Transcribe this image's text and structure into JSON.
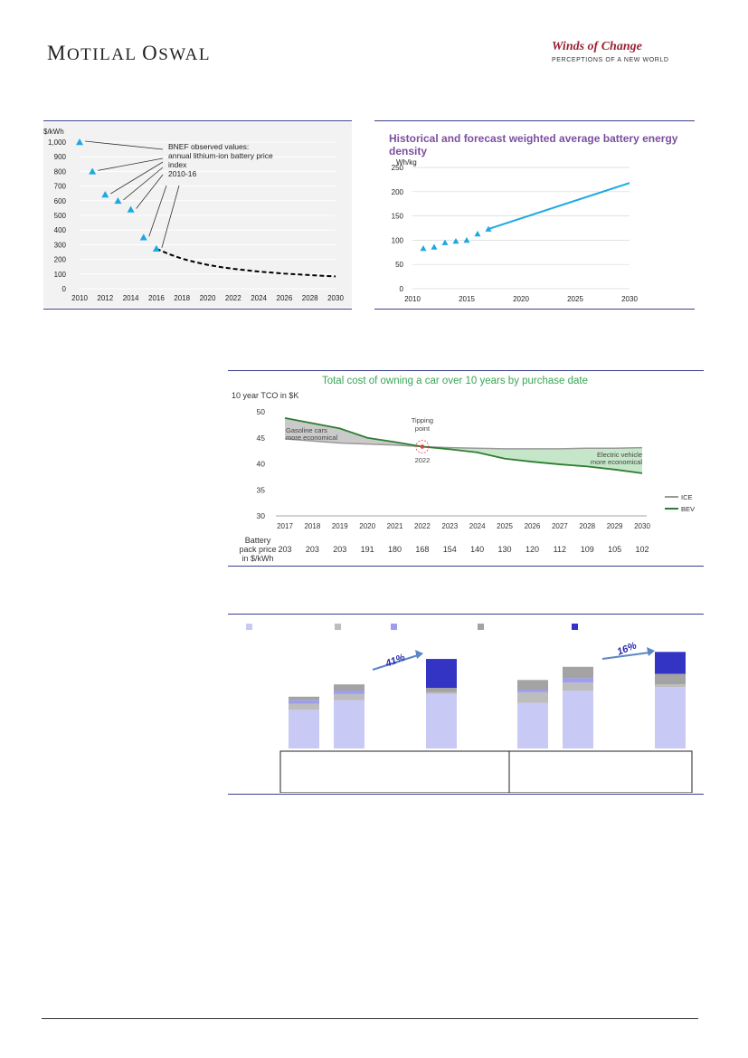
{
  "header": {
    "brand": "Motilal Oswal",
    "brand_display": [
      "M",
      "OTILAL ",
      "O",
      "SWAL"
    ],
    "logo_title": "Winds of Change",
    "logo_subtitle": "PERCEPTIONS OF A NEW WORLD"
  },
  "chart_data": [
    {
      "id": "battery-price",
      "type": "line",
      "ylabel": "$/kWh",
      "annotation": "BNEF observed values:\nannual lithium-ion battery price\nindex\n2010-16",
      "ylim": [
        0,
        1000
      ],
      "yticks": [
        "0",
        "100",
        "200",
        "300",
        "400",
        "500",
        "600",
        "700",
        "800",
        "900",
        "1,000"
      ],
      "xlim": [
        2010,
        2030
      ],
      "xticks": [
        "2010",
        "2012",
        "2014",
        "2016",
        "2018",
        "2020",
        "2022",
        "2024",
        "2026",
        "2028",
        "2030"
      ],
      "series": [
        {
          "kind": "observed",
          "marker": "triangle",
          "color": "#1ca9e0",
          "x": [
            2010,
            2011,
            2012,
            2013,
            2014,
            2015,
            2016
          ],
          "y": [
            1000,
            800,
            642,
            599,
            540,
            350,
            273
          ]
        },
        {
          "kind": "forecast",
          "style": "dashed",
          "color": "#000000",
          "x": [
            2016,
            2017,
            2018,
            2019,
            2020,
            2021,
            2022,
            2023,
            2024,
            2025,
            2026,
            2027,
            2028,
            2029,
            2030
          ],
          "y": [
            273,
            235,
            205,
            182,
            163,
            148,
            136,
            126,
            117,
            110,
            103,
            98,
            93,
            88,
            84
          ]
        }
      ]
    },
    {
      "id": "energy-density",
      "type": "line",
      "title": "Historical and forecast weighted average battery energy density",
      "ylabel": "Wh/kg",
      "ylim": [
        0,
        250
      ],
      "yticks": [
        "0",
        "50",
        "100",
        "150",
        "200",
        "250"
      ],
      "xlim": [
        2010,
        2030
      ],
      "xticks": [
        "2010",
        "2015",
        "2020",
        "2025",
        "2030"
      ],
      "series": [
        {
          "kind": "observed",
          "marker": "triangle",
          "color": "#1ca9e0",
          "x": [
            2011,
            2012,
            2013,
            2014,
            2015,
            2016,
            2017
          ],
          "y": [
            83,
            86,
            95,
            98,
            100,
            113,
            123
          ]
        },
        {
          "kind": "forecast",
          "style": "solid",
          "color": "#1ca9e0",
          "x": [
            2017,
            2030
          ],
          "y": [
            123,
            218
          ]
        }
      ]
    },
    {
      "id": "tco",
      "type": "area",
      "title": "Total cost of owning a car over 10 years by purchase date",
      "ylabel": "10 year TCO in $K",
      "ylim": [
        30,
        50
      ],
      "yticks": [
        "30",
        "35",
        "40",
        "45",
        "50"
      ],
      "categories": [
        "2017",
        "2018",
        "2019",
        "2020",
        "2021",
        "2022",
        "2023",
        "2024",
        "2025",
        "2026",
        "2027",
        "2028",
        "2029",
        "2030"
      ],
      "series": [
        {
          "name": "ICE",
          "color": "#999999",
          "values": [
            44.8,
            44.4,
            44.0,
            43.8,
            43.6,
            43.3,
            43.1,
            43.0,
            42.9,
            42.9,
            42.9,
            43.0,
            43.0,
            43.1
          ]
        },
        {
          "name": "BEV",
          "color": "#2e7d32",
          "values": [
            48.8,
            47.8,
            46.8,
            45.0,
            44.2,
            43.3,
            42.8,
            42.2,
            41.0,
            40.4,
            39.9,
            39.5,
            38.9,
            38.2
          ]
        }
      ],
      "annotations": {
        "gasoline": "Gasoline cars\nmore economical",
        "ev": "Electric vehicle\nmore economical",
        "tipping": "Tipping\npoint",
        "tipping_year": "2022"
      },
      "battery_row_label": "Battery\npack price\nin $/kWh",
      "battery_prices": [
        "203",
        "203",
        "203",
        "191",
        "180",
        "168",
        "154",
        "140",
        "130",
        "120",
        "112",
        "109",
        "105",
        "102"
      ]
    },
    {
      "id": "stacked-cost",
      "type": "bar",
      "stacked": true,
      "series_colors": [
        "#c9c9f5",
        "#bdbdbd",
        "#9e9ef0",
        "#a3a3a3",
        "#3434c4"
      ],
      "groups": [
        {
          "bars": [
            {
              "values": [
                44,
                7,
                4,
                4,
                0
              ]
            },
            {
              "values": [
                55,
                7,
                4,
                7,
                0
              ]
            },
            {
              "values": [
                62,
                2,
                0,
                5,
                33
              ]
            }
          ]
        },
        {
          "bars": [
            {
              "values": [
                52,
                12,
                3,
                11,
                0
              ]
            },
            {
              "values": [
                66,
                9,
                5,
                13,
                0
              ]
            },
            {
              "values": [
                70,
                3,
                0,
                12,
                25
              ]
            }
          ]
        }
      ],
      "growth_labels": [
        "41%",
        "16%"
      ]
    }
  ]
}
